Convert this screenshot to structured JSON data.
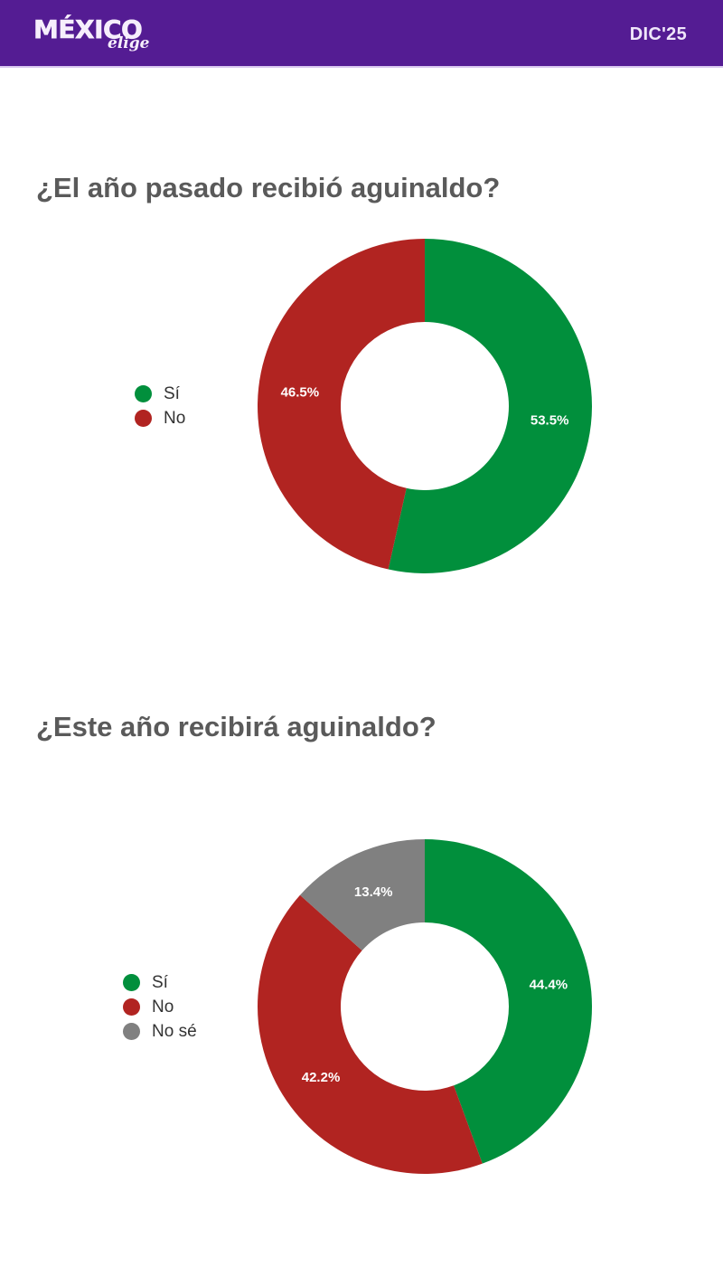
{
  "header": {
    "logo_main": "MÉXICO",
    "logo_sub": "elige",
    "date": "DIC'25",
    "background": "#541c93"
  },
  "colors": {
    "si": "#018f3c",
    "no": "#b12421",
    "nose": "#808080"
  },
  "chart_data": [
    {
      "type": "pie",
      "subtype": "donut",
      "title": "¿El año pasado recibió aguinaldo?",
      "categories": [
        "Sí",
        "No"
      ],
      "values": [
        53.5,
        46.5
      ],
      "labels": [
        "53.5%",
        "46.5%"
      ],
      "colors": [
        "#018f3c",
        "#b12421"
      ],
      "legend_position": "left"
    },
    {
      "type": "pie",
      "subtype": "donut",
      "title": "¿Este año recibirá aguinaldo?",
      "categories": [
        "Sí",
        "No",
        "No sé"
      ],
      "values": [
        44.4,
        42.2,
        13.4
      ],
      "labels": [
        "44.4%",
        "42.2%",
        "13.4%"
      ],
      "colors": [
        "#018f3c",
        "#b12421",
        "#808080"
      ],
      "legend_position": "left"
    }
  ]
}
